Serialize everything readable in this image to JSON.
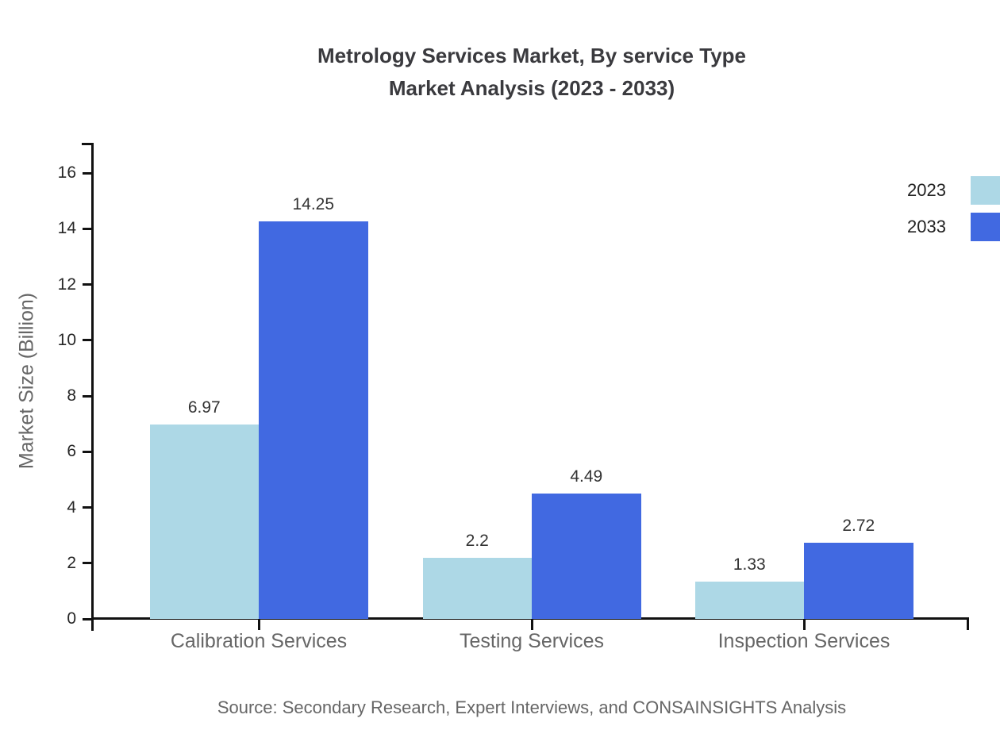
{
  "title": {
    "line1": "Metrology Services Market, By service Type",
    "line2": "Market Analysis (2023 - 2033)"
  },
  "y_axis": {
    "label": "Market Size (Billion)"
  },
  "source_note": "Source: Secondary Research, Expert Interviews, and CONSAINSIGHTS Analysis",
  "legend": {
    "position": "top-right",
    "items": [
      {
        "label": "2023",
        "color": "#ADD8E6"
      },
      {
        "label": "2033",
        "color": "#4169E1"
      }
    ]
  },
  "colors": {
    "series_2023": "#ADD8E6",
    "series_2033": "#4169E1",
    "axis": "#111111",
    "title_text": "#3a3a3e",
    "muted_text": "#666666",
    "value_text": "#333333"
  },
  "chart_data": {
    "type": "bar",
    "title": "Metrology Services Market, By service Type Market Analysis (2023 - 2033)",
    "categories": [
      "Calibration Services",
      "Testing Services",
      "Inspection Services"
    ],
    "series": [
      {
        "name": "2023",
        "color": "#ADD8E6",
        "values": [
          6.97,
          2.2,
          1.33
        ]
      },
      {
        "name": "2033",
        "color": "#4169E1",
        "values": [
          14.25,
          4.49,
          2.72
        ]
      }
    ],
    "xlabel": "",
    "ylabel": "Market Size (Billion)",
    "yticks": [
      0,
      2,
      4,
      6,
      8,
      10,
      12,
      14,
      16
    ],
    "ylim": [
      0,
      17.1
    ],
    "grid": false,
    "legend_position": "top-right",
    "value_labels_shown": true,
    "source": "Source: Secondary Research, Expert Interviews, and CONSAINSIGHTS Analysis"
  }
}
